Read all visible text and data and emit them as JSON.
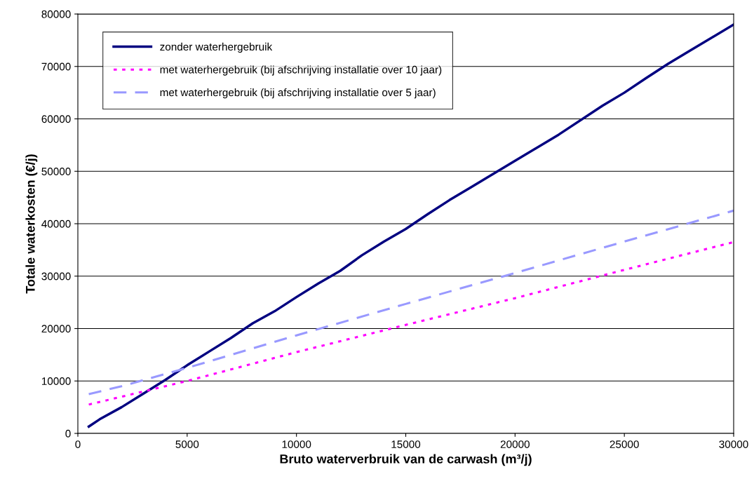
{
  "chart_data": {
    "type": "line",
    "xlabel": "Bruto waterverbruik van de carwash (m³/j)",
    "ylabel": "Totale waterkosten (€/j)",
    "xlim": [
      0,
      30000
    ],
    "xticks": [
      0,
      5000,
      10000,
      15000,
      20000,
      25000,
      30000
    ],
    "ylim": [
      0,
      80000
    ],
    "yticks": [
      0,
      10000,
      20000,
      30000,
      40000,
      50000,
      60000,
      70000,
      80000
    ],
    "grid": "y",
    "legend": "top left",
    "marker": "none",
    "series": [
      {
        "name": "zonder waterhergebruik",
        "color": "#000080",
        "line_style": "solid",
        "x": [
          500,
          1000,
          2000,
          3000,
          4000,
          5000,
          6000,
          7000,
          8000,
          9000,
          10000,
          11000,
          12000,
          13000,
          14000,
          15000,
          16000,
          17000,
          18000,
          19000,
          20000,
          22000,
          24000,
          25000,
          26000,
          27000,
          28000,
          30000
        ],
        "values": [
          1300,
          2700,
          5000,
          7600,
          10200,
          13000,
          15600,
          18200,
          21000,
          23300,
          26000,
          28600,
          31000,
          34000,
          36600,
          39000,
          41800,
          44500,
          47000,
          49500,
          52000,
          57000,
          62500,
          65000,
          67800,
          70500,
          73000,
          78000
        ]
      },
      {
        "name": "met waterhergebruik (bij afschrijving installatie over 10 jaar)",
        "color": "#ff00ff",
        "line_style": "dotted",
        "x": [
          500,
          2000,
          5000,
          10000,
          15000,
          20000,
          25000,
          30000
        ],
        "values": [
          5500,
          7000,
          10000,
          15500,
          20700,
          25800,
          31200,
          36500
        ]
      },
      {
        "name": "met waterhergebruik (bij afschrijving installatie over 5 jaar)",
        "color": "#9999ff",
        "line_style": "dashed",
        "x": [
          500,
          2000,
          5000,
          10000,
          15000,
          20000,
          25000,
          30000
        ],
        "values": [
          7500,
          9000,
          12500,
          18700,
          24700,
          30600,
          36600,
          42500
        ]
      }
    ]
  }
}
